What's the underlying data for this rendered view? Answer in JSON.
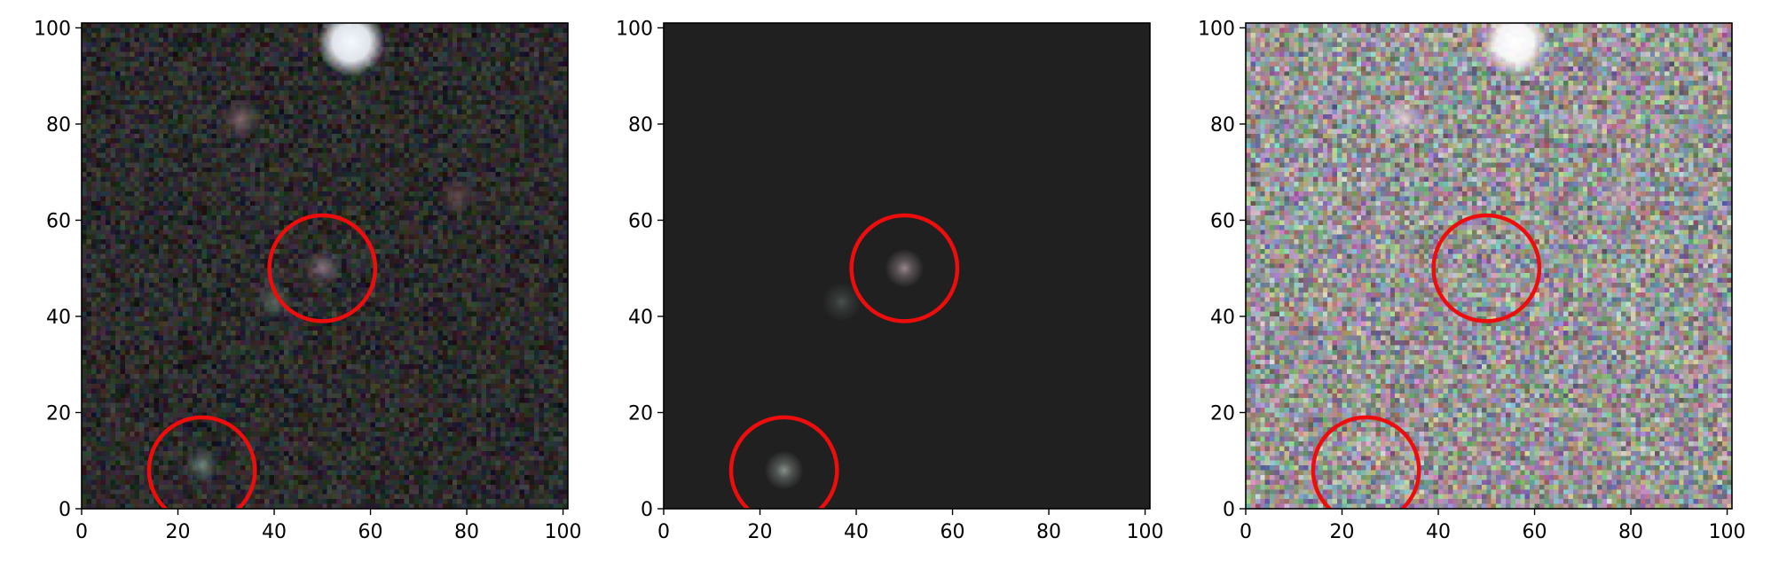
{
  "figure": {
    "panels": [
      {
        "name": "left",
        "style": "data",
        "xticks": [
          "0",
          "20",
          "40",
          "60",
          "80",
          "100"
        ],
        "yticks": [
          "0",
          "20",
          "40",
          "60",
          "80",
          "100"
        ],
        "sources": [
          {
            "x": 56,
            "y": 97,
            "brightness": "saturated",
            "color": "#f4f8ff"
          },
          {
            "x": 33,
            "y": 81,
            "brightness": "faint",
            "color": "#8a6a70"
          },
          {
            "x": 50,
            "y": 50,
            "brightness": "faint",
            "color": "#8a7484"
          },
          {
            "x": 40,
            "y": 43,
            "brightness": "faint",
            "color": "#5a6a62"
          },
          {
            "x": 25,
            "y": 9,
            "brightness": "faint",
            "color": "#6f8a7e"
          },
          {
            "x": 78,
            "y": 65,
            "brightness": "faint",
            "color": "#6a4a50"
          }
        ]
      },
      {
        "name": "middle",
        "style": "model",
        "xticks": [
          "0",
          "20",
          "40",
          "60",
          "80",
          "100"
        ],
        "yticks": [
          "0",
          "20",
          "40",
          "60",
          "80",
          "100"
        ],
        "sources": [
          {
            "x": 50,
            "y": 50,
            "brightness": "faint",
            "color": "#9e8c92"
          },
          {
            "x": 37,
            "y": 43,
            "brightness": "faint",
            "color": "#4a524e"
          },
          {
            "x": 25,
            "y": 8,
            "brightness": "faint",
            "color": "#8c9690"
          }
        ]
      },
      {
        "name": "right",
        "style": "residual",
        "xticks": [
          "0",
          "20",
          "40",
          "60",
          "80",
          "100"
        ],
        "yticks": [
          "0",
          "20",
          "40",
          "60",
          "80",
          "100"
        ],
        "sources": [
          {
            "x": 56,
            "y": 97,
            "brightness": "saturated",
            "color": "#ffffff"
          },
          {
            "x": 33,
            "y": 81,
            "brightness": "faint",
            "color": "#e8d8dc"
          },
          {
            "x": 78,
            "y": 65,
            "brightness": "faint",
            "color": "#c9a0b0"
          }
        ]
      }
    ],
    "circles": [
      {
        "x": 50,
        "y": 50,
        "r": 11
      },
      {
        "x": 25,
        "y": 8,
        "r": 11
      }
    ],
    "circle_color": "#ee0d0d",
    "axis_range": [
      0,
      101
    ]
  }
}
